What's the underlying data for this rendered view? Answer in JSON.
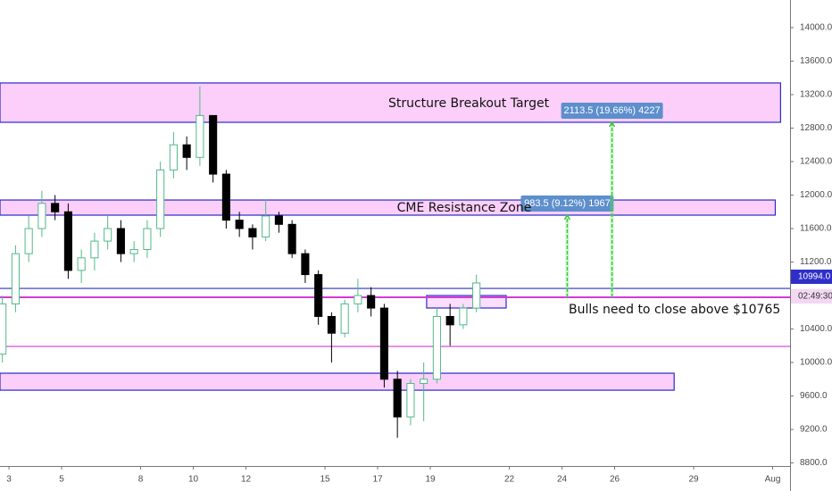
{
  "chart_data": {
    "type": "candlestick",
    "x": [
      2.75,
      3.25,
      3.75,
      4.25,
      4.75,
      5.25,
      5.75,
      6.25,
      6.75,
      7.25,
      7.75,
      8.25,
      8.75,
      9.25,
      9.75,
      10.25,
      10.75,
      11.25,
      11.75,
      12.25,
      12.75,
      13.25,
      13.75,
      14.25,
      14.75,
      15.25,
      15.75,
      16.25,
      16.75,
      17.25,
      17.75,
      18.25,
      18.75,
      19.25,
      19.75,
      20.25,
      20.75
    ],
    "open": [
      10100,
      10700,
      11300,
      11600,
      11900,
      11800,
      11100,
      11250,
      11450,
      11600,
      11300,
      11350,
      11600,
      12300,
      12600,
      12450,
      12950,
      12250,
      11700,
      11600,
      11500,
      11750,
      11650,
      11300,
      11050,
      10550,
      10350,
      10700,
      10800,
      10650,
      9800,
      9350,
      9750,
      9800,
      10550,
      10450,
      10650
    ],
    "high": [
      10800,
      11400,
      11750,
      12050,
      12000,
      11900,
      11350,
      11550,
      11750,
      11700,
      11450,
      11700,
      12400,
      12750,
      12700,
      13300,
      12950,
      12300,
      11800,
      11650,
      11950,
      11800,
      11700,
      11350,
      11100,
      10600,
      10750,
      11000,
      10900,
      10700,
      9900,
      9800,
      10000,
      10650,
      10700,
      10700,
      11050
    ],
    "low": [
      10000,
      10600,
      11200,
      11500,
      11700,
      11000,
      10950,
      11100,
      11350,
      11200,
      11200,
      11250,
      11500,
      12200,
      12300,
      12350,
      12150,
      11600,
      11500,
      11350,
      11450,
      11550,
      11250,
      10950,
      10450,
      10000,
      10300,
      10600,
      10550,
      9700,
      9100,
      9250,
      9300,
      9750,
      10200,
      10400,
      10600
    ],
    "close": [
      10700,
      11300,
      11600,
      11900,
      11800,
      11100,
      11250,
      11450,
      11600,
      11300,
      11350,
      11600,
      12300,
      12600,
      12450,
      12950,
      12250,
      11700,
      11600,
      11500,
      11750,
      11650,
      11300,
      11050,
      10550,
      10350,
      10700,
      10800,
      10650,
      9800,
      9350,
      9750,
      9800,
      10550,
      10450,
      10650,
      10950
    ],
    "up_color": "#53b987",
    "down_color": "#000000",
    "xlim": [
      2.66,
      32.66
    ],
    "xticks": [
      {
        "value": 3,
        "label": "3"
      },
      {
        "value": 5,
        "label": "5"
      },
      {
        "value": 8,
        "label": "8"
      },
      {
        "value": 10,
        "label": "10"
      },
      {
        "value": 12,
        "label": "12"
      },
      {
        "value": 15,
        "label": "15"
      },
      {
        "value": 17,
        "label": "17"
      },
      {
        "value": 19,
        "label": "19"
      },
      {
        "value": 22,
        "label": "22"
      },
      {
        "value": 24,
        "label": "24"
      },
      {
        "value": 26,
        "label": "26"
      },
      {
        "value": 29,
        "label": "29"
      },
      {
        "value": 32,
        "label": "Aug"
      }
    ],
    "ylim": [
      8610,
      14330
    ],
    "yticks": [
      {
        "value": 14000,
        "label": "14000.0"
      },
      {
        "value": 13600,
        "label": "13600.0"
      },
      {
        "value": 13200,
        "label": "13200.0"
      },
      {
        "value": 12800,
        "label": "12800.0"
      },
      {
        "value": 12400,
        "label": "12400.0"
      },
      {
        "value": 12000,
        "label": "12000.0"
      },
      {
        "value": 11600,
        "label": "11600.0"
      },
      {
        "value": 11200,
        "label": "11200.0"
      },
      {
        "value": 10400,
        "label": "10400.0"
      },
      {
        "value": 10000,
        "label": "10000.0"
      },
      {
        "value": 9600,
        "label": "9600.0"
      },
      {
        "value": 9200,
        "label": "9200.0"
      },
      {
        "value": 8800,
        "label": "8800.0"
      }
    ],
    "zones": [
      {
        "from": 12869,
        "to": 13339,
        "x0": 2.66,
        "x1": 32.3
      },
      {
        "from": 11760,
        "to": 11941,
        "x0": 2.66,
        "x1": 32.1
      },
      {
        "from": 9669,
        "to": 9872,
        "x0": 2.66,
        "x1": 28.26
      },
      {
        "from": 10651,
        "to": 10800,
        "x0": 18.86,
        "x1": 21.88
      }
    ],
    "lines": [
      {
        "value": 10885,
        "color": "#2f2fc8"
      },
      {
        "value": 10779,
        "color": "#d63ad6"
      },
      {
        "value": 10192,
        "color": "#d63ad6"
      }
    ],
    "measures": [
      {
        "x": 24.2,
        "from": 10779,
        "to": 11760,
        "label": "983.5 (9.12%) 1967"
      },
      {
        "x": 25.9,
        "from": 10779,
        "to": 12869,
        "label": "2113.5 (19.66%) 4227"
      }
    ],
    "texts": {
      "zone_top": "Structure Breakout Target",
      "zone_cme": "CME Resistance Zone",
      "note": "Bulls need to close above $10765"
    },
    "price_tag": "10994.0",
    "countdown": "02:49:30"
  }
}
